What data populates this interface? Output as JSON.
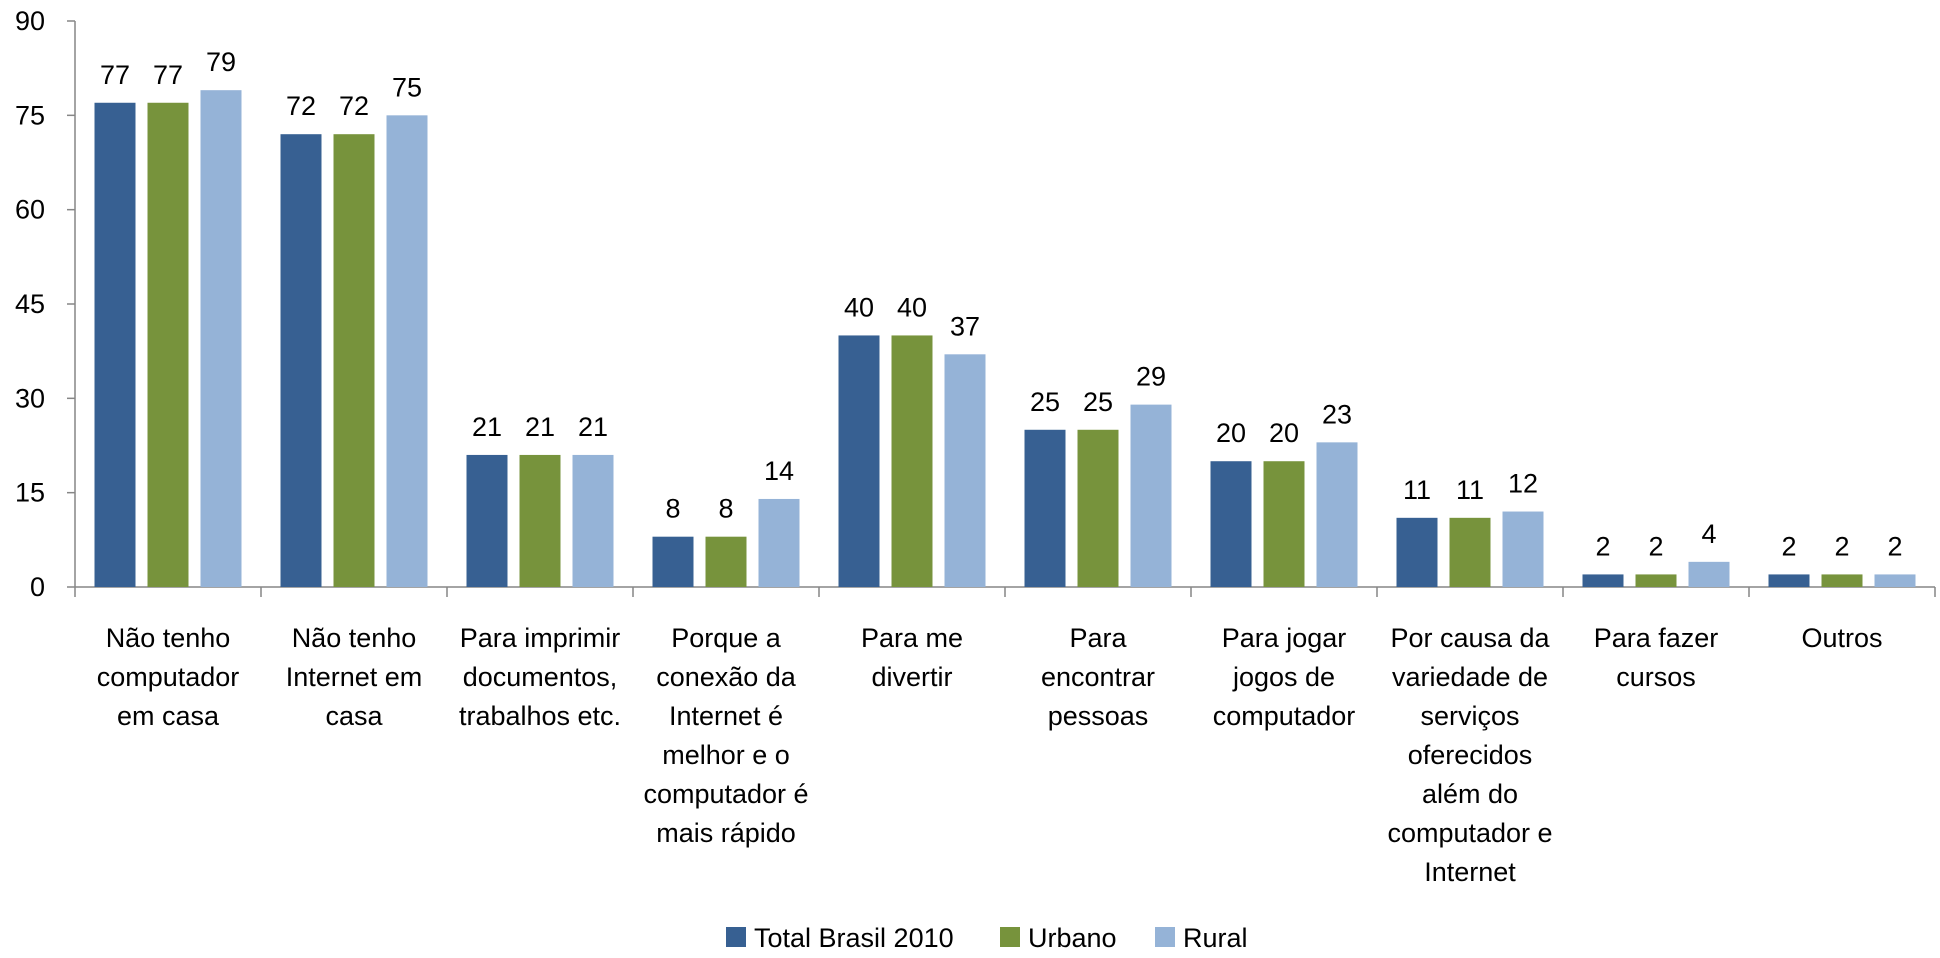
{
  "chart_data": {
    "type": "bar",
    "title": "",
    "xlabel": "",
    "ylabel": "",
    "ylim": [
      0,
      90
    ],
    "yticks": [
      0,
      15,
      30,
      45,
      60,
      75,
      90
    ],
    "grid": false,
    "legend_position": "bottom-center",
    "categories": [
      [
        "Não tenho",
        "computador",
        "em casa"
      ],
      [
        "Não tenho",
        "Internet em",
        "casa"
      ],
      [
        "Para imprimir",
        "documentos,",
        "trabalhos etc."
      ],
      [
        "Porque a",
        "conexão da",
        "Internet é",
        "melhor e o",
        "computador é",
        "mais rápido"
      ],
      [
        "Para me",
        "divertir"
      ],
      [
        "Para",
        "encontrar",
        "pessoas"
      ],
      [
        "Para jogar",
        "jogos de",
        "computador"
      ],
      [
        "Por causa da",
        "variedade de",
        "serviços",
        "oferecidos",
        "além do",
        "computador e",
        "Internet"
      ],
      [
        "Para fazer",
        "cursos"
      ],
      [
        "Outros"
      ]
    ],
    "series": [
      {
        "name": "Total Brasil 2010",
        "color": "#376092",
        "values": [
          77,
          72,
          21,
          8,
          40,
          25,
          20,
          11,
          2,
          2
        ]
      },
      {
        "name": "Urbano",
        "color": "#77933C",
        "values": [
          77,
          72,
          21,
          8,
          40,
          25,
          20,
          11,
          2,
          2
        ]
      },
      {
        "name": "Rural",
        "color": "#95B3D7",
        "values": [
          79,
          75,
          21,
          14,
          37,
          29,
          23,
          12,
          4,
          2
        ]
      }
    ]
  }
}
